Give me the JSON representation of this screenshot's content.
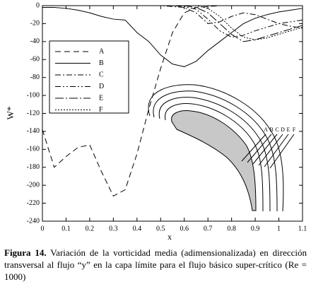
{
  "chart_data": {
    "type": "line",
    "x_label": "x",
    "y_label": "W*",
    "x": [
      0,
      0.05,
      0.1,
      0.15,
      0.2,
      0.25,
      0.3,
      0.35,
      0.4,
      0.45,
      0.5,
      0.55,
      0.6,
      0.65,
      0.7,
      0.75,
      0.8,
      0.85,
      0.9,
      0.95,
      1,
      1.05,
      1.1
    ],
    "series": [
      {
        "name": "A",
        "color": "#000000",
        "dash": "8,5",
        "values": [
          -138,
          -180,
          -168,
          -158,
          -155,
          -185,
          -212,
          -205,
          -165,
          -115,
          -70,
          -30,
          -8,
          -2,
          -1,
          0,
          0,
          0,
          0,
          0,
          0,
          0,
          0
        ]
      },
      {
        "name": "B",
        "color": "#000000",
        "dash": "none",
        "values": [
          -2,
          -2,
          -3,
          -5,
          -8,
          -12,
          -15,
          -16,
          -30,
          -40,
          -55,
          -65,
          -68,
          -62,
          -50,
          -40,
          -30,
          -20,
          -14,
          -10,
          -7,
          -5,
          -3
        ]
      },
      {
        "name": "C",
        "color": "#000000",
        "dash": "8,3,2,3",
        "values": [
          0,
          0,
          0,
          0,
          0,
          0,
          0,
          0,
          0,
          0,
          0,
          -1,
          -2,
          -8,
          -20,
          -18,
          -12,
          -8,
          -10,
          -15,
          -20,
          -23,
          -25
        ]
      },
      {
        "name": "D",
        "color": "#000000",
        "dash": "8,3,2,3,2,3",
        "values": [
          0,
          0,
          0,
          0,
          0,
          0,
          0,
          0,
          0,
          0,
          0,
          0,
          -1,
          -4,
          -15,
          -28,
          -35,
          -33,
          -28,
          -24,
          -20,
          -18,
          -16
        ]
      },
      {
        "name": "E",
        "color": "#000000",
        "dash": "12,3,2,3",
        "values": [
          0,
          0,
          0,
          0,
          0,
          0,
          0,
          0,
          0,
          0,
          0,
          0,
          0,
          -2,
          -8,
          -20,
          -32,
          -40,
          -38,
          -34,
          -30,
          -26,
          -22
        ]
      },
      {
        "name": "F",
        "color": "#000000",
        "dash": "2,2",
        "values": [
          0,
          0,
          0,
          0,
          0,
          0,
          0,
          0,
          0,
          0,
          0,
          0,
          0,
          0,
          -3,
          -12,
          -25,
          -35,
          -38,
          -36,
          -32,
          -28,
          -24
        ]
      }
    ],
    "xlim": [
      0,
      1.1
    ],
    "xticks": [
      0,
      0.1,
      0.2,
      0.3,
      0.4,
      0.5,
      0.6,
      0.7,
      0.8,
      0.9,
      1,
      1.1
    ],
    "ylim": [
      -240,
      0
    ],
    "yticks": [
      -240,
      -220,
      -200,
      -180,
      -160,
      -140,
      -120,
      -100,
      -80,
      -60,
      -40,
      -20,
      0
    ],
    "grid": false,
    "legend": "upper left"
  },
  "caption": {
    "label": "Figura 14.",
    "text": "Variación de la vorticidad media (adimensionalizada) en dirección transversal al flujo “y” en la capa límite para el flujo básico super-crítico (Re = 1000)"
  }
}
